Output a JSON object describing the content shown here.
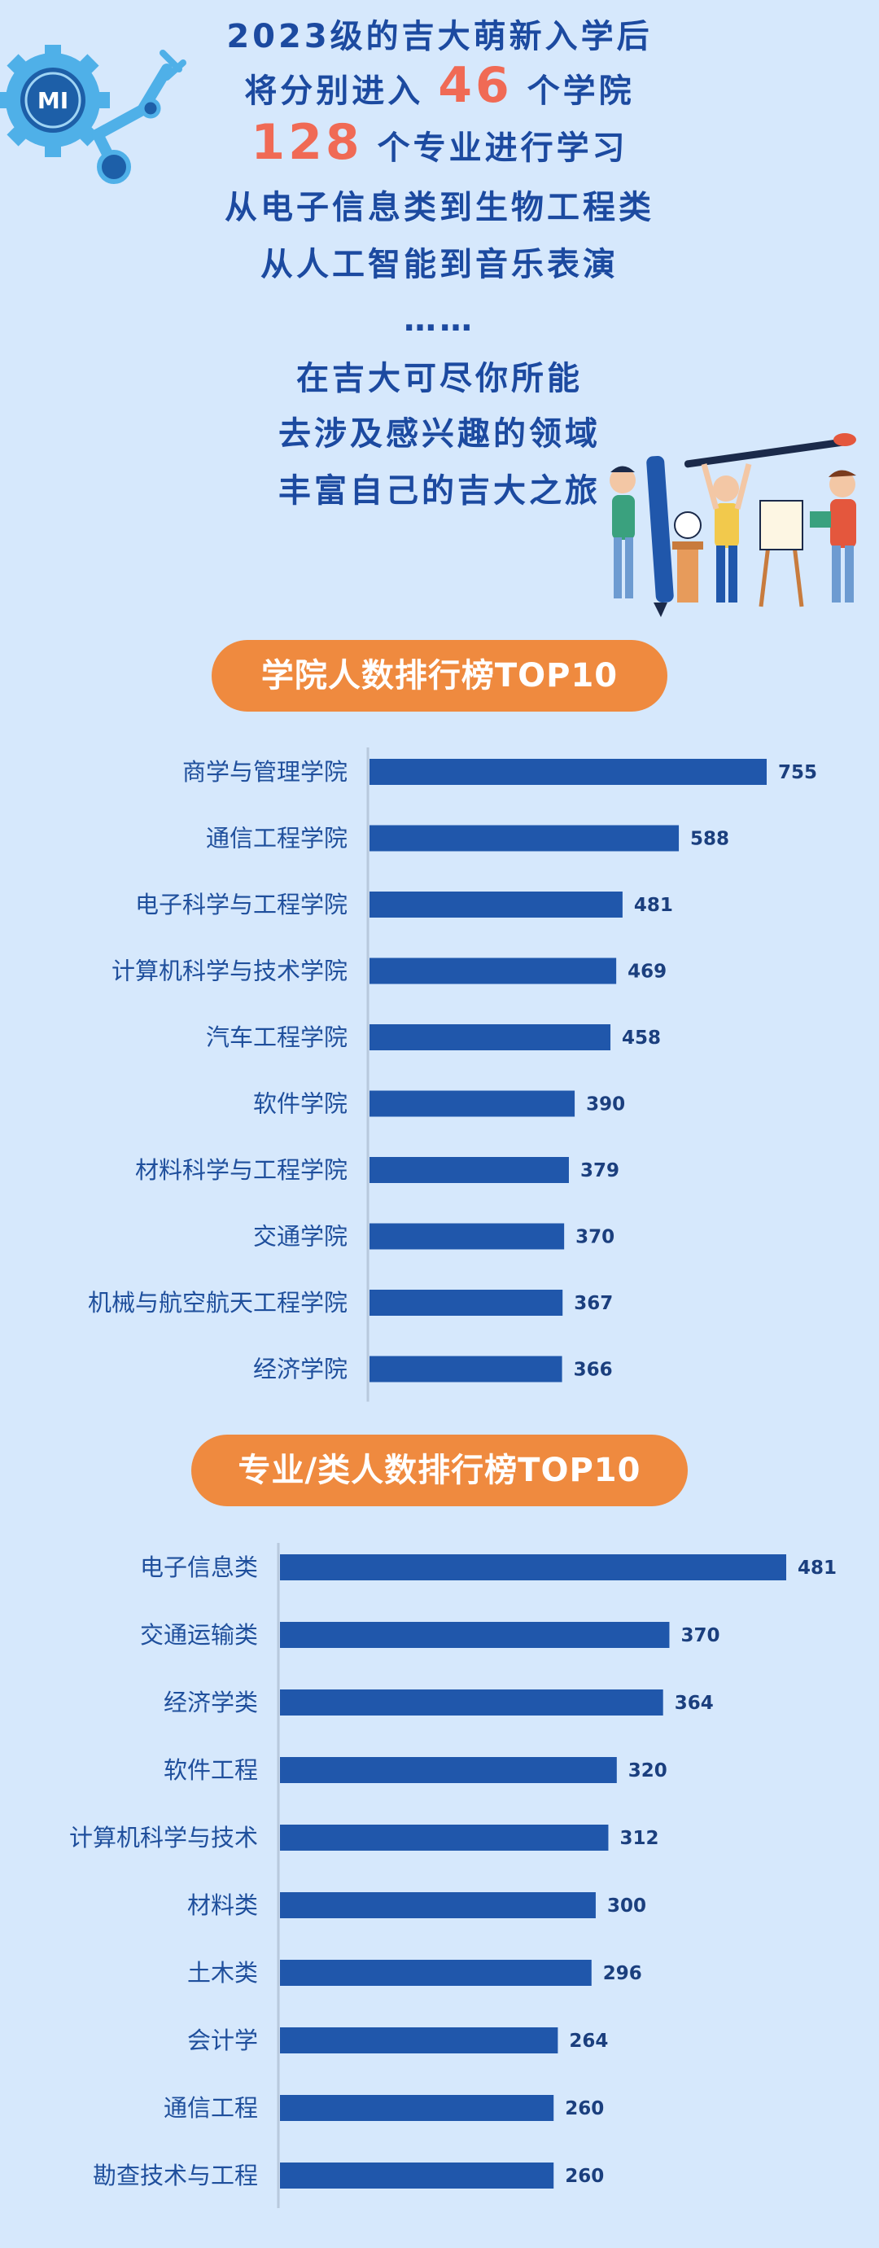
{
  "intro": {
    "line1": "2023级的吉大萌新入学后",
    "line2_pre": "将分别进入",
    "line2_num": "46",
    "line2_post": "个学院",
    "line3_num": "128",
    "line3_post": "个专业进行学习",
    "line4": "从电子信息类到生物工程类",
    "line5": "从人工智能到音乐表演",
    "line6": "……",
    "line7": "在吉大可尽你所能",
    "line8": "去涉及感兴趣的领域",
    "line9": "丰富自己的吉大之旅",
    "logo_text": "MI"
  },
  "colors": {
    "background": "#d6e8fc",
    "title_text": "#1c4aa0",
    "highlight": "#f06a55",
    "pill": "#ef8a3f",
    "bar": "#2057ab",
    "label": "#1f4f9c"
  },
  "chart_data": [
    {
      "type": "bar",
      "orientation": "horizontal",
      "title": "学院人数排行榜TOP10",
      "categories": [
        "商学与管理学院",
        "通信工程学院",
        "电子科学与工程学院",
        "计算机科学与技术学院",
        "汽车工程学院",
        "软件学院",
        "材料科学与工程学院",
        "交通学院",
        "机械与航空航天工程学院",
        "经济学院"
      ],
      "values": [
        755,
        588,
        481,
        469,
        458,
        390,
        379,
        370,
        367,
        366
      ],
      "xlim": [
        0,
        755
      ]
    },
    {
      "type": "bar",
      "orientation": "horizontal",
      "title": "专业/类人数排行榜TOP10",
      "categories": [
        "电子信息类",
        "交通运输类",
        "经济学类",
        "软件工程",
        "计算机科学与技术",
        "材料类",
        "土木类",
        "会计学",
        "通信工程",
        "勘查技术与工程"
      ],
      "values": [
        481,
        370,
        364,
        320,
        312,
        300,
        296,
        264,
        260,
        260
      ],
      "xlim": [
        0,
        481
      ]
    }
  ]
}
